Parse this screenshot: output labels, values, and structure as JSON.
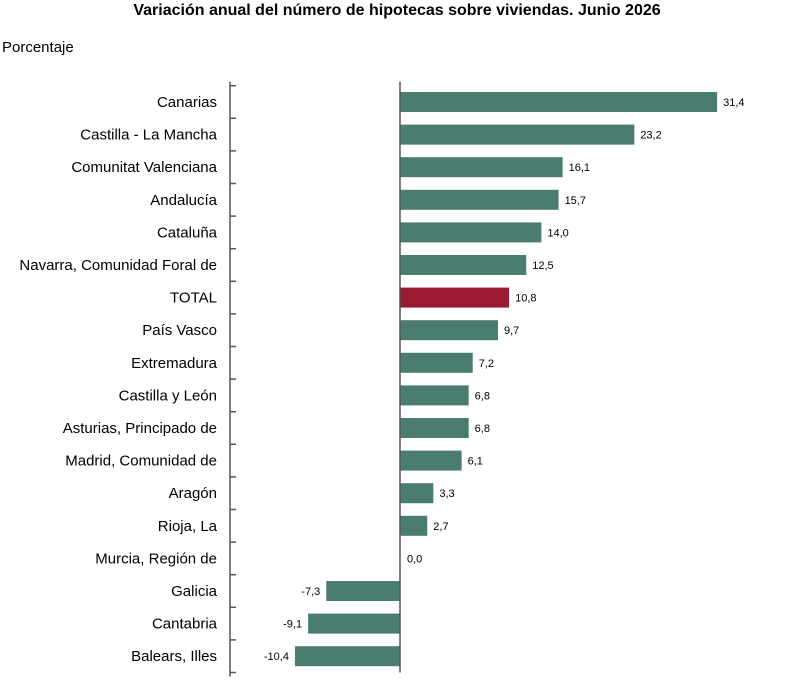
{
  "chart_data": {
    "type": "bar",
    "orientation": "horizontal",
    "title": "Variación anual del número de hipotecas sobre viviendas. Junio 2026",
    "unit_label": "Porcentaje",
    "categories": [
      "Canarias",
      "Castilla - La Mancha",
      "Comunitat Valenciana",
      "Andalucía",
      "Cataluña",
      "Navarra, Comunidad Foral de",
      "TOTAL",
      "País Vasco",
      "Extremadura",
      "Castilla y León",
      "Asturias, Principado de",
      "Madrid, Comunidad de",
      "Aragón",
      "Rioja, La",
      "Murcia, Región de",
      "Galicia",
      "Cantabria",
      "Balears, Illes"
    ],
    "values": [
      31.4,
      23.2,
      16.1,
      15.7,
      14.0,
      12.5,
      10.8,
      9.7,
      7.2,
      6.8,
      6.8,
      6.1,
      3.3,
      2.7,
      0.0,
      -7.3,
      -9.1,
      -10.4
    ],
    "value_labels": [
      "31,4",
      "23,2",
      "16,1",
      "15,7",
      "14,0",
      "12,5",
      "10,8",
      "9,7",
      "7,2",
      "6,8",
      "6,8",
      "6,1",
      "3,3",
      "2,7",
      "0,0",
      "-7,3",
      "-9,1",
      "-10,4"
    ],
    "highlight_category": "TOTAL",
    "colors": {
      "bar": "#4a7c70",
      "highlight": "#9b1b33",
      "axis": "#555555"
    },
    "grid": false,
    "legend": "none"
  }
}
